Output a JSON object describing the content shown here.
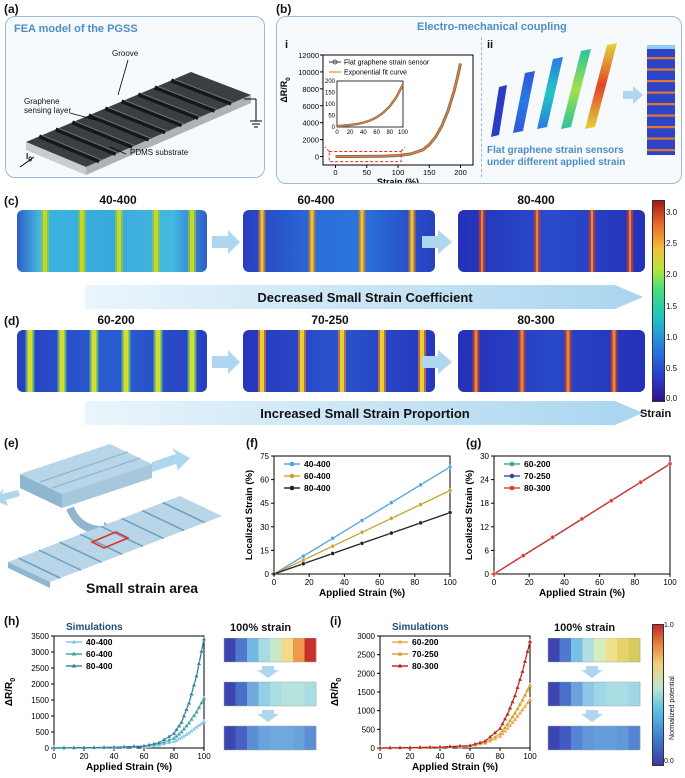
{
  "panel_labels": {
    "a": "(a)",
    "b": "(b)",
    "c": "(c)",
    "d": "(d)",
    "e": "(e)",
    "f": "(f)",
    "g": "(g)",
    "h": "(h)",
    "i": "(i)"
  },
  "panel_a": {
    "title": "FEA model of the PGSS",
    "labels": {
      "groove": "Groove",
      "graphene": "Graphene\nsensing layer",
      "graphene_l1": "Graphene",
      "graphene_l2": "sensing layer",
      "pdms": "PDMS substrate",
      "current": "I",
      "current_sub": "0"
    }
  },
  "panel_b": {
    "title": "Electro-mechanical coupling",
    "sub_i": "i",
    "sub_ii": "ii",
    "caption_l1": "Flat graphene strain sensors",
    "caption_l2": "under different applied strain",
    "chart": {
      "legend": [
        "Flat graphene strain sensor",
        "Exponential fit curve"
      ],
      "ylabel": "ΔR/R",
      "ylabel_sub": "0",
      "xlabel": "Strain (%)",
      "yticks": [
        "12000",
        "10000",
        "8000",
        "6000",
        "4000",
        "2000",
        "0"
      ],
      "xticks": [
        "0",
        "50",
        "100",
        "150",
        "200"
      ],
      "inset_yticks": [
        "200",
        "150",
        "100",
        "50",
        "0"
      ],
      "inset_xticks": [
        "0",
        "20",
        "40",
        "60",
        "80",
        "100"
      ]
    }
  },
  "panel_c": {
    "labels": [
      "40-400",
      "60-400",
      "80-400"
    ],
    "band_text": "Decreased Small Strain Coefficient"
  },
  "panel_d": {
    "labels": [
      "60-200",
      "70-250",
      "80-300"
    ],
    "band_text": "Increased Small Strain Proportion"
  },
  "colorbar": {
    "ticks": [
      "3.0",
      "2.5",
      "2.0",
      "1.5",
      "1.0",
      "0.5",
      "0.0"
    ],
    "label": "Strain"
  },
  "panel_e": {
    "caption": "Small strain area"
  },
  "chart_data": [
    {
      "id": "b-i",
      "type": "line",
      "title": "",
      "xlabel": "Strain (%)",
      "ylabel": "ΔR/R0",
      "xlim": [
        -20,
        220
      ],
      "ylim": [
        -1000,
        12000
      ],
      "series": [
        {
          "name": "Flat graphene strain sensor",
          "x": [
            0,
            25,
            50,
            75,
            100,
            120,
            140,
            150,
            160,
            170,
            180,
            190,
            195,
            200
          ],
          "y": [
            0,
            5,
            15,
            40,
            120,
            300,
            800,
            1400,
            2300,
            3600,
            5400,
            7800,
            9300,
            11000
          ]
        },
        {
          "name": "Exponential fit curve",
          "x": [
            0,
            25,
            50,
            75,
            100,
            120,
            140,
            150,
            160,
            170,
            180,
            190,
            195,
            200
          ],
          "y": [
            0,
            5,
            15,
            40,
            120,
            300,
            800,
            1400,
            2300,
            3600,
            5400,
            7800,
            9300,
            11000
          ]
        }
      ],
      "inset": {
        "xlim": [
          0,
          100
        ],
        "ylim": [
          0,
          200
        ],
        "x": [
          0,
          10,
          20,
          30,
          40,
          50,
          60,
          70,
          80,
          90,
          100
        ],
        "y": [
          4,
          6,
          9,
          13,
          19,
          28,
          42,
          62,
          90,
          130,
          185
        ]
      }
    },
    {
      "id": "f",
      "type": "line",
      "title": "",
      "xlabel": "Applied Strain (%)",
      "ylabel": "Localized Strain (%)",
      "xlim": [
        0,
        100
      ],
      "ylim": [
        0,
        75
      ],
      "xticks": [
        "0",
        "20",
        "40",
        "60",
        "80",
        "100"
      ],
      "yticks": [
        "75",
        "60",
        "45",
        "30",
        "15",
        "0"
      ],
      "series": [
        {
          "name": "40-400",
          "color": "#4aa3df",
          "x": [
            0,
            100
          ],
          "y": [
            0,
            68
          ]
        },
        {
          "name": "60-400",
          "color": "#c9a227",
          "x": [
            0,
            100
          ],
          "y": [
            0,
            53
          ]
        },
        {
          "name": "80-400",
          "color": "#222222",
          "x": [
            0,
            100
          ],
          "y": [
            0,
            39
          ]
        }
      ]
    },
    {
      "id": "g",
      "type": "line",
      "title": "",
      "xlabel": "Applied Strain (%)",
      "ylabel": "Localized Strain (%)",
      "xlim": [
        0,
        100
      ],
      "ylim": [
        0,
        30
      ],
      "xticks": [
        "0",
        "20",
        "40",
        "60",
        "80",
        "100"
      ],
      "yticks": [
        "30",
        "24",
        "18",
        "12",
        "6",
        "0"
      ],
      "series": [
        {
          "name": "60-200",
          "color": "#3aa39a",
          "x": [
            0,
            100
          ],
          "y": [
            0,
            28
          ]
        },
        {
          "name": "70-250",
          "color": "#2c4aa8",
          "x": [
            0,
            100
          ],
          "y": [
            0,
            28
          ]
        },
        {
          "name": "80-300",
          "color": "#d93a2b",
          "x": [
            0,
            100
          ],
          "y": [
            0,
            28
          ]
        }
      ]
    },
    {
      "id": "h",
      "type": "line",
      "title": "Simulations",
      "xlabel": "Applied Strain (%)",
      "ylabel": "ΔR/R0",
      "xlim": [
        0,
        100
      ],
      "ylim": [
        0,
        3500
      ],
      "xticks": [
        "0",
        "20",
        "40",
        "60",
        "80",
        "100"
      ],
      "yticks": [
        "3500",
        "3000",
        "2500",
        "2000",
        "1500",
        "1000",
        "500",
        "0"
      ],
      "series": [
        {
          "name": "40-400",
          "color": "#7ec3ea",
          "x": [
            0,
            20,
            40,
            60,
            70,
            80,
            85,
            90,
            95,
            100
          ],
          "y": [
            0,
            5,
            15,
            40,
            90,
            200,
            320,
            470,
            650,
            820
          ]
        },
        {
          "name": "60-400",
          "color": "#3aa39a",
          "x": [
            0,
            20,
            40,
            60,
            70,
            80,
            85,
            90,
            95,
            100
          ],
          "y": [
            0,
            6,
            18,
            50,
            120,
            300,
            500,
            780,
            1120,
            1550
          ]
        },
        {
          "name": "80-400",
          "color": "#2f7fa3",
          "x": [
            0,
            20,
            40,
            60,
            70,
            80,
            85,
            90,
            95,
            100
          ],
          "y": [
            0,
            8,
            22,
            60,
            160,
            450,
            800,
            1400,
            2250,
            3400
          ]
        }
      ]
    },
    {
      "id": "i",
      "type": "line",
      "title": "Simulations",
      "xlabel": "Applied Strain (%)",
      "ylabel": "ΔR/R0",
      "xlim": [
        0,
        100
      ],
      "ylim": [
        0,
        3000
      ],
      "xticks": [
        "0",
        "20",
        "40",
        "60",
        "80",
        "100"
      ],
      "yticks": [
        "3000",
        "2500",
        "2000",
        "1500",
        "1000",
        "500",
        "0"
      ],
      "series": [
        {
          "name": "60-200",
          "color": "#f0a24b",
          "x": [
            0,
            20,
            40,
            60,
            70,
            80,
            85,
            90,
            95,
            100
          ],
          "y": [
            0,
            6,
            18,
            50,
            120,
            310,
            520,
            760,
            1020,
            1300
          ]
        },
        {
          "name": "70-250",
          "color": "#c9a227",
          "x": [
            0,
            20,
            40,
            60,
            70,
            80,
            85,
            90,
            95,
            100
          ],
          "y": [
            0,
            7,
            20,
            55,
            140,
            370,
            630,
            930,
            1280,
            1680
          ]
        },
        {
          "name": "80-300",
          "color": "#b8241b",
          "x": [
            0,
            20,
            40,
            60,
            70,
            80,
            85,
            90,
            95,
            100
          ],
          "y": [
            0,
            8,
            24,
            65,
            180,
            520,
            900,
            1400,
            2050,
            2850
          ]
        }
      ]
    }
  ],
  "heatmaps": {
    "title": "100% strain",
    "colorbar_label": "Normalized potential",
    "colorbar_ticks": [
      "1.0",
      "0.0"
    ]
  },
  "colors": {
    "accent": "#4a8fc4",
    "arrow": "#aed7ef"
  }
}
